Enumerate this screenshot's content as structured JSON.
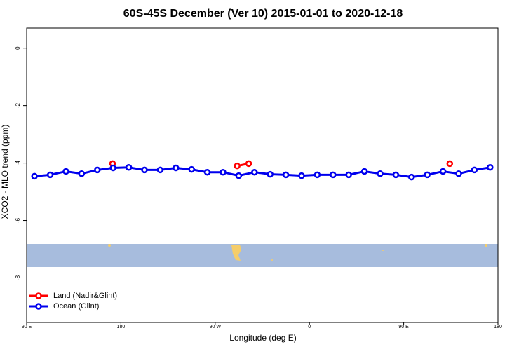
{
  "chart_data": {
    "type": "line",
    "title": "60S-45S December (Ver 10)   2015-01-01 to 2020-12-18",
    "xlabel": "Longitude (deg E)",
    "ylabel": "XCO2 - MLO trend (ppm)",
    "xlim": [
      90,
      540
    ],
    "ylim": [
      -9.55,
      0.7
    ],
    "xticks": [
      {
        "value": 90,
        "label": "90 E"
      },
      {
        "value": 180,
        "label": "180"
      },
      {
        "value": 270,
        "label": "90 W"
      },
      {
        "value": 360,
        "label": "0"
      },
      {
        "value": 450,
        "label": "90 E"
      },
      {
        "value": 540,
        "label": "180"
      }
    ],
    "yticks": [
      0,
      -2,
      -4,
      -6,
      -8
    ],
    "legend": "bottom-left",
    "series": [
      {
        "name": "Land (Nadir&Glint)",
        "color": "#ff0000",
        "x": [
          172,
          291,
          302,
          494
        ],
        "values": [
          -4.02,
          -4.1,
          -4.02,
          -4.02
        ]
      },
      {
        "name": "Ocean (Glint)",
        "color": "#0000ee",
        "x": [
          97.5,
          112.5,
          127.5,
          142.5,
          157.5,
          172.5,
          187.5,
          202.5,
          217.5,
          232.5,
          247.5,
          262.5,
          277.5,
          292.5,
          307.5,
          322.5,
          337.5,
          352.5,
          367.5,
          382.5,
          397.5,
          412.5,
          427.5,
          442.5,
          457.5,
          472.5,
          487.5,
          502.5,
          517.5,
          532.5
        ],
        "values": [
          -4.46,
          -4.41,
          -4.29,
          -4.37,
          -4.24,
          -4.17,
          -4.15,
          -4.24,
          -4.24,
          -4.17,
          -4.22,
          -4.32,
          -4.32,
          -4.44,
          -4.32,
          -4.39,
          -4.41,
          -4.44,
          -4.41,
          -4.41,
          -4.41,
          -4.29,
          -4.37,
          -4.41,
          -4.49,
          -4.41,
          -4.29,
          -4.37,
          -4.24,
          -4.15
        ]
      }
    ]
  }
}
